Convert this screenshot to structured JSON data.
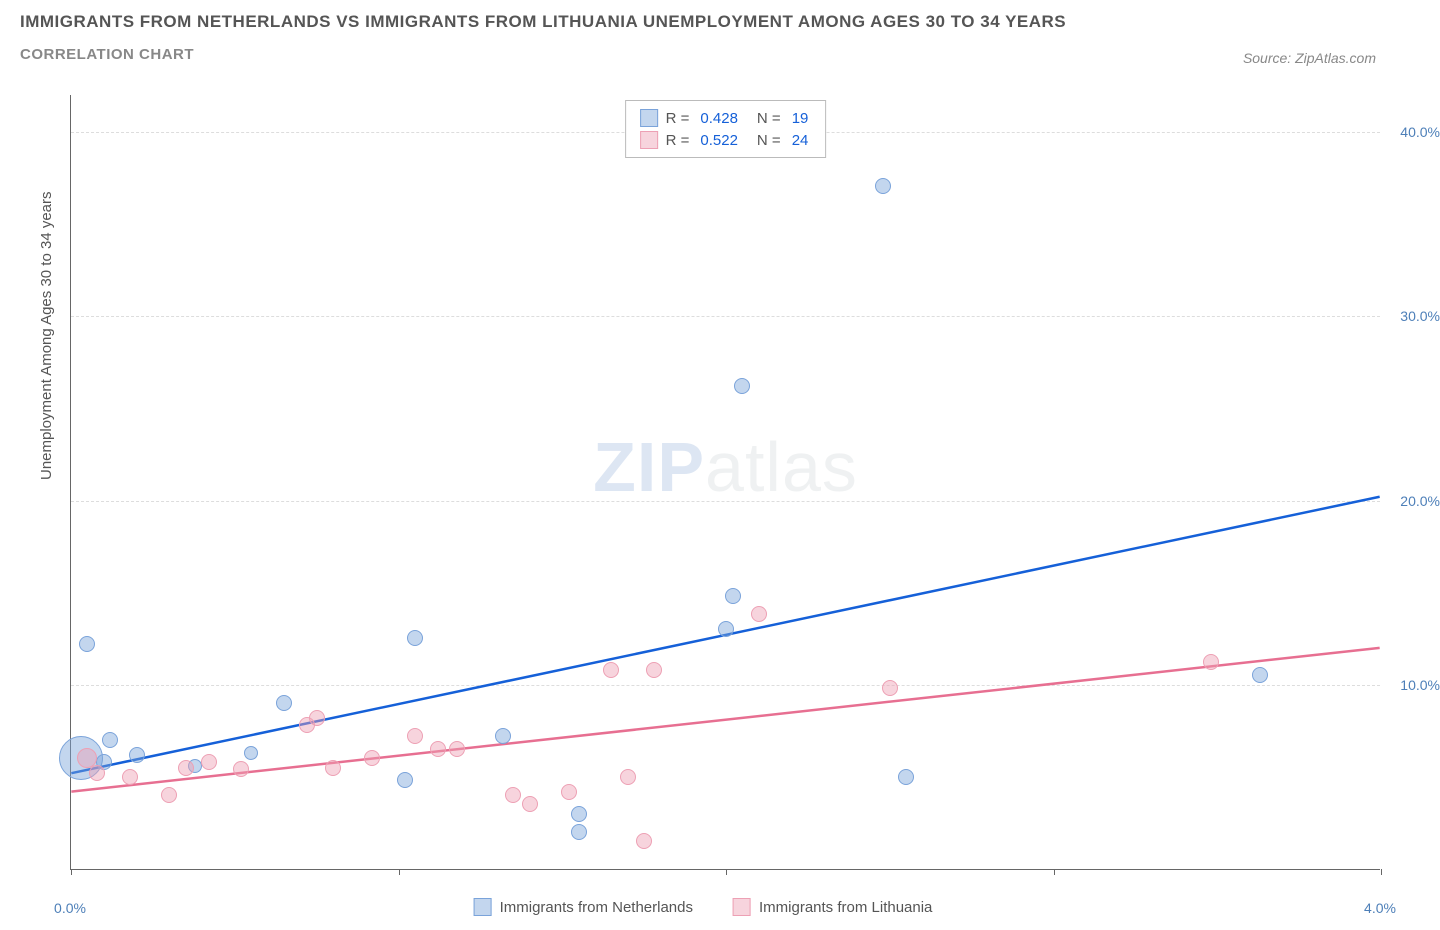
{
  "title": "IMMIGRANTS FROM NETHERLANDS VS IMMIGRANTS FROM LITHUANIA UNEMPLOYMENT AMONG AGES 30 TO 34 YEARS",
  "subtitle": "CORRELATION CHART",
  "source": "Source: ZipAtlas.com",
  "watermark_a": "ZIP",
  "watermark_b": "atlas",
  "y_axis_title": "Unemployment Among Ages 30 to 34 years",
  "chart": {
    "type": "scatter",
    "background_color": "#ffffff",
    "grid_color": "#dddddd",
    "xlim": [
      0.0,
      4.0
    ],
    "ylim": [
      0.0,
      42.0
    ],
    "x_ticks": [
      0.0,
      1.0,
      2.0,
      3.0,
      4.0
    ],
    "x_tick_labels": [
      "0.0%",
      "",
      "",
      "",
      "4.0%"
    ],
    "y_ticks": [
      10.0,
      20.0,
      30.0,
      40.0
    ],
    "y_tick_labels": [
      "10.0%",
      "20.0%",
      "30.0%",
      "40.0%"
    ],
    "series": [
      {
        "name": "Immigrants from Netherlands",
        "color_fill": "rgba(122,163,218,0.45)",
        "color_stroke": "#7aa3da",
        "trend_color": "#1560d8",
        "r_value": "0.428",
        "n_value": "19",
        "trend": {
          "x1": 0.0,
          "y1": 5.2,
          "x2": 4.0,
          "y2": 20.2
        },
        "points": [
          {
            "x": 0.03,
            "y": 6.0,
            "r": 22
          },
          {
            "x": 0.05,
            "y": 12.2,
            "r": 8
          },
          {
            "x": 0.1,
            "y": 5.8,
            "r": 8
          },
          {
            "x": 0.12,
            "y": 7.0,
            "r": 8
          },
          {
            "x": 0.2,
            "y": 6.2,
            "r": 8
          },
          {
            "x": 0.38,
            "y": 5.6,
            "r": 7
          },
          {
            "x": 0.55,
            "y": 6.3,
            "r": 7
          },
          {
            "x": 0.65,
            "y": 9.0,
            "r": 8
          },
          {
            "x": 1.02,
            "y": 4.8,
            "r": 8
          },
          {
            "x": 1.05,
            "y": 12.5,
            "r": 8
          },
          {
            "x": 1.32,
            "y": 7.2,
            "r": 8
          },
          {
            "x": 1.55,
            "y": 3.0,
            "r": 8
          },
          {
            "x": 1.55,
            "y": 2.0,
            "r": 8
          },
          {
            "x": 2.0,
            "y": 13.0,
            "r": 8
          },
          {
            "x": 2.02,
            "y": 14.8,
            "r": 8
          },
          {
            "x": 2.05,
            "y": 26.2,
            "r": 8
          },
          {
            "x": 2.48,
            "y": 37.0,
            "r": 8
          },
          {
            "x": 2.55,
            "y": 5.0,
            "r": 8
          },
          {
            "x": 3.63,
            "y": 10.5,
            "r": 8
          }
        ]
      },
      {
        "name": "Immigrants from Lithuania",
        "color_fill": "rgba(237,160,180,0.45)",
        "color_stroke": "#eda0b4",
        "trend_color": "#e76f91",
        "r_value": "0.522",
        "n_value": "24",
        "trend": {
          "x1": 0.0,
          "y1": 4.2,
          "x2": 4.0,
          "y2": 12.0
        },
        "points": [
          {
            "x": 0.05,
            "y": 6.0,
            "r": 10
          },
          {
            "x": 0.08,
            "y": 5.2,
            "r": 8
          },
          {
            "x": 0.18,
            "y": 5.0,
            "r": 8
          },
          {
            "x": 0.3,
            "y": 4.0,
            "r": 8
          },
          {
            "x": 0.35,
            "y": 5.5,
            "r": 8
          },
          {
            "x": 0.42,
            "y": 5.8,
            "r": 8
          },
          {
            "x": 0.52,
            "y": 5.4,
            "r": 8
          },
          {
            "x": 0.72,
            "y": 7.8,
            "r": 8
          },
          {
            "x": 0.75,
            "y": 8.2,
            "r": 8
          },
          {
            "x": 0.8,
            "y": 5.5,
            "r": 8
          },
          {
            "x": 0.92,
            "y": 6.0,
            "r": 8
          },
          {
            "x": 1.05,
            "y": 7.2,
            "r": 8
          },
          {
            "x": 1.12,
            "y": 6.5,
            "r": 8
          },
          {
            "x": 1.18,
            "y": 6.5,
            "r": 8
          },
          {
            "x": 1.35,
            "y": 4.0,
            "r": 8
          },
          {
            "x": 1.4,
            "y": 3.5,
            "r": 8
          },
          {
            "x": 1.52,
            "y": 4.2,
            "r": 8
          },
          {
            "x": 1.65,
            "y": 10.8,
            "r": 8
          },
          {
            "x": 1.7,
            "y": 5.0,
            "r": 8
          },
          {
            "x": 1.75,
            "y": 1.5,
            "r": 8
          },
          {
            "x": 1.78,
            "y": 10.8,
            "r": 8
          },
          {
            "x": 2.1,
            "y": 13.8,
            "r": 8
          },
          {
            "x": 2.5,
            "y": 9.8,
            "r": 8
          },
          {
            "x": 3.48,
            "y": 11.2,
            "r": 8
          }
        ]
      }
    ]
  },
  "legend_labels": {
    "r": "R =",
    "n": "N ="
  }
}
